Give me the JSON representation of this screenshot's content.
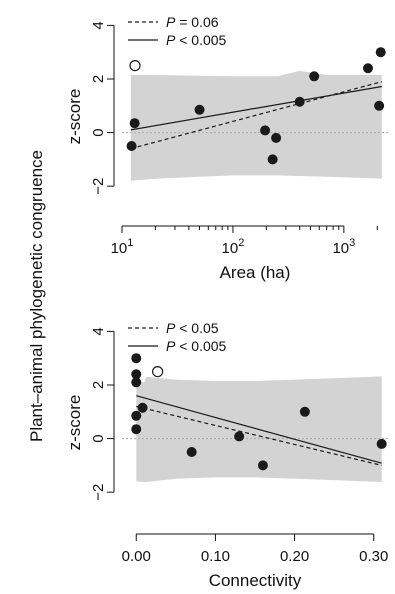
{
  "shared_ylabel": "Plant–animal phylogenetic congruence",
  "colors": {
    "ci_band": "#d3d3d3",
    "point": "#1a1a1a",
    "line": "#1a1a1a",
    "zero_line": "#b0b0b0",
    "hollow_point_fill": "#ffffff"
  },
  "chart_data": [
    {
      "type": "scatter",
      "xlabel": "Area (ha)",
      "ylabel": "z-score",
      "x_scale": "log10",
      "xlim": [
        10,
        2500
      ],
      "ylim": [
        -3.3,
        4.5
      ],
      "x_ticks": [
        {
          "value": 10,
          "base": "10",
          "exp": "1"
        },
        {
          "value": 100,
          "base": "10",
          "exp": "2"
        },
        {
          "value": 1000,
          "base": "10",
          "exp": "3"
        }
      ],
      "y_ticks": [
        {
          "value": -2,
          "label": "−2"
        },
        {
          "value": 0,
          "label": "0"
        },
        {
          "value": 2,
          "label": "2"
        },
        {
          "value": 4,
          "label": "4"
        }
      ],
      "reference_line_y": 0,
      "legend_position": "top-left",
      "legend": [
        {
          "style": "dashed",
          "symbol": "P",
          "label": " = 0.06"
        },
        {
          "style": "solid",
          "symbol": "P",
          "label": " < 0.005"
        }
      ],
      "series": [
        {
          "name": "",
          "marker": "filled",
          "points": [
            {
              "x": 12.2,
              "y": -0.5
            },
            {
              "x": 13,
              "y": 0.35
            },
            {
              "x": 50,
              "y": 0.85
            },
            {
              "x": 195,
              "y": 0.08
            },
            {
              "x": 228,
              "y": -1.0
            },
            {
              "x": 245,
              "y": -0.2
            },
            {
              "x": 400,
              "y": 1.15
            },
            {
              "x": 540,
              "y": 2.1
            },
            {
              "x": 1650,
              "y": 2.4
            },
            {
              "x": 2080,
              "y": 1.0
            },
            {
              "x": 2150,
              "y": 3.0
            }
          ]
        },
        {
          "name": "",
          "marker": "open",
          "points": [
            {
              "x": 13.1,
              "y": 2.5
            }
          ]
        }
      ],
      "fit_lines": [
        {
          "style": "dashed",
          "points": [
            {
              "x": 12,
              "y": -0.6
            },
            {
              "x": 2200,
              "y": 1.9
            }
          ]
        },
        {
          "style": "solid",
          "points": [
            {
              "x": 12,
              "y": 0.1
            },
            {
              "x": 2200,
              "y": 1.72
            }
          ]
        }
      ],
      "ci_band": [
        {
          "x": 12,
          "lo": -1.8,
          "hi": 2.15
        },
        {
          "x": 20,
          "lo": -1.72,
          "hi": 2.15
        },
        {
          "x": 50,
          "lo": -1.65,
          "hi": 2.12
        },
        {
          "x": 100,
          "lo": -1.6,
          "hi": 2.1
        },
        {
          "x": 250,
          "lo": -1.6,
          "hi": 2.1
        },
        {
          "x": 400,
          "lo": -1.62,
          "hi": 2.3
        },
        {
          "x": 700,
          "lo": -1.65,
          "hi": 2.15
        },
        {
          "x": 1200,
          "lo": -1.68,
          "hi": 2.15
        },
        {
          "x": 2200,
          "lo": -1.72,
          "hi": 2.15
        }
      ]
    },
    {
      "type": "scatter",
      "xlabel": "Connectivity",
      "ylabel": "z-score",
      "x_scale": "linear",
      "xlim": [
        -0.018,
        0.318
      ],
      "ylim": [
        -3.3,
        4.5
      ],
      "x_ticks": [
        {
          "value": 0.0,
          "label": "0.00"
        },
        {
          "value": 0.1,
          "label": "0.10"
        },
        {
          "value": 0.2,
          "label": "0.20"
        },
        {
          "value": 0.3,
          "label": "0.30"
        }
      ],
      "y_ticks": [
        {
          "value": -2,
          "label": "−2"
        },
        {
          "value": 0,
          "label": "0"
        },
        {
          "value": 2,
          "label": "2"
        },
        {
          "value": 4,
          "label": "4"
        }
      ],
      "reference_line_y": 0,
      "legend_position": "top-left",
      "legend": [
        {
          "style": "dashed",
          "symbol": "P",
          "label": " < 0.05"
        },
        {
          "style": "solid",
          "symbol": "P",
          "label": " < 0.005"
        }
      ],
      "series": [
        {
          "name": "",
          "marker": "filled",
          "points": [
            {
              "x": 0.0,
              "y": 3.0
            },
            {
              "x": 0.0,
              "y": 2.4
            },
            {
              "x": 0.0,
              "y": 2.1
            },
            {
              "x": 0.0,
              "y": 0.85
            },
            {
              "x": 0.0,
              "y": 0.35
            },
            {
              "x": 0.008,
              "y": 1.15
            },
            {
              "x": 0.07,
              "y": -0.5
            },
            {
              "x": 0.13,
              "y": 0.08
            },
            {
              "x": 0.16,
              "y": -1.0
            },
            {
              "x": 0.213,
              "y": 1.0
            },
            {
              "x": 0.31,
              "y": -0.2
            }
          ]
        },
        {
          "name": "",
          "marker": "open",
          "points": [
            {
              "x": 0.027,
              "y": 2.5
            }
          ]
        }
      ],
      "fit_lines": [
        {
          "style": "dashed",
          "points": [
            {
              "x": 0.0,
              "y": 1.2
            },
            {
              "x": 0.31,
              "y": -1.0
            }
          ]
        },
        {
          "style": "solid",
          "points": [
            {
              "x": 0.0,
              "y": 1.6
            },
            {
              "x": 0.31,
              "y": -0.92
            }
          ]
        }
      ],
      "ci_band": [
        {
          "x": 0.0,
          "lo": -1.6,
          "hi": 2.1
        },
        {
          "x": 0.01,
          "lo": -1.62,
          "hi": 2.1
        },
        {
          "x": 0.013,
          "lo": -1.62,
          "hi": 2.3
        },
        {
          "x": 0.05,
          "lo": -1.5,
          "hi": 2.2
        },
        {
          "x": 0.1,
          "lo": -1.45,
          "hi": 2.15
        },
        {
          "x": 0.15,
          "lo": -1.45,
          "hi": 2.15
        },
        {
          "x": 0.2,
          "lo": -1.5,
          "hi": 2.2
        },
        {
          "x": 0.25,
          "lo": -1.55,
          "hi": 2.25
        },
        {
          "x": 0.31,
          "lo": -1.62,
          "hi": 2.32
        }
      ]
    }
  ]
}
